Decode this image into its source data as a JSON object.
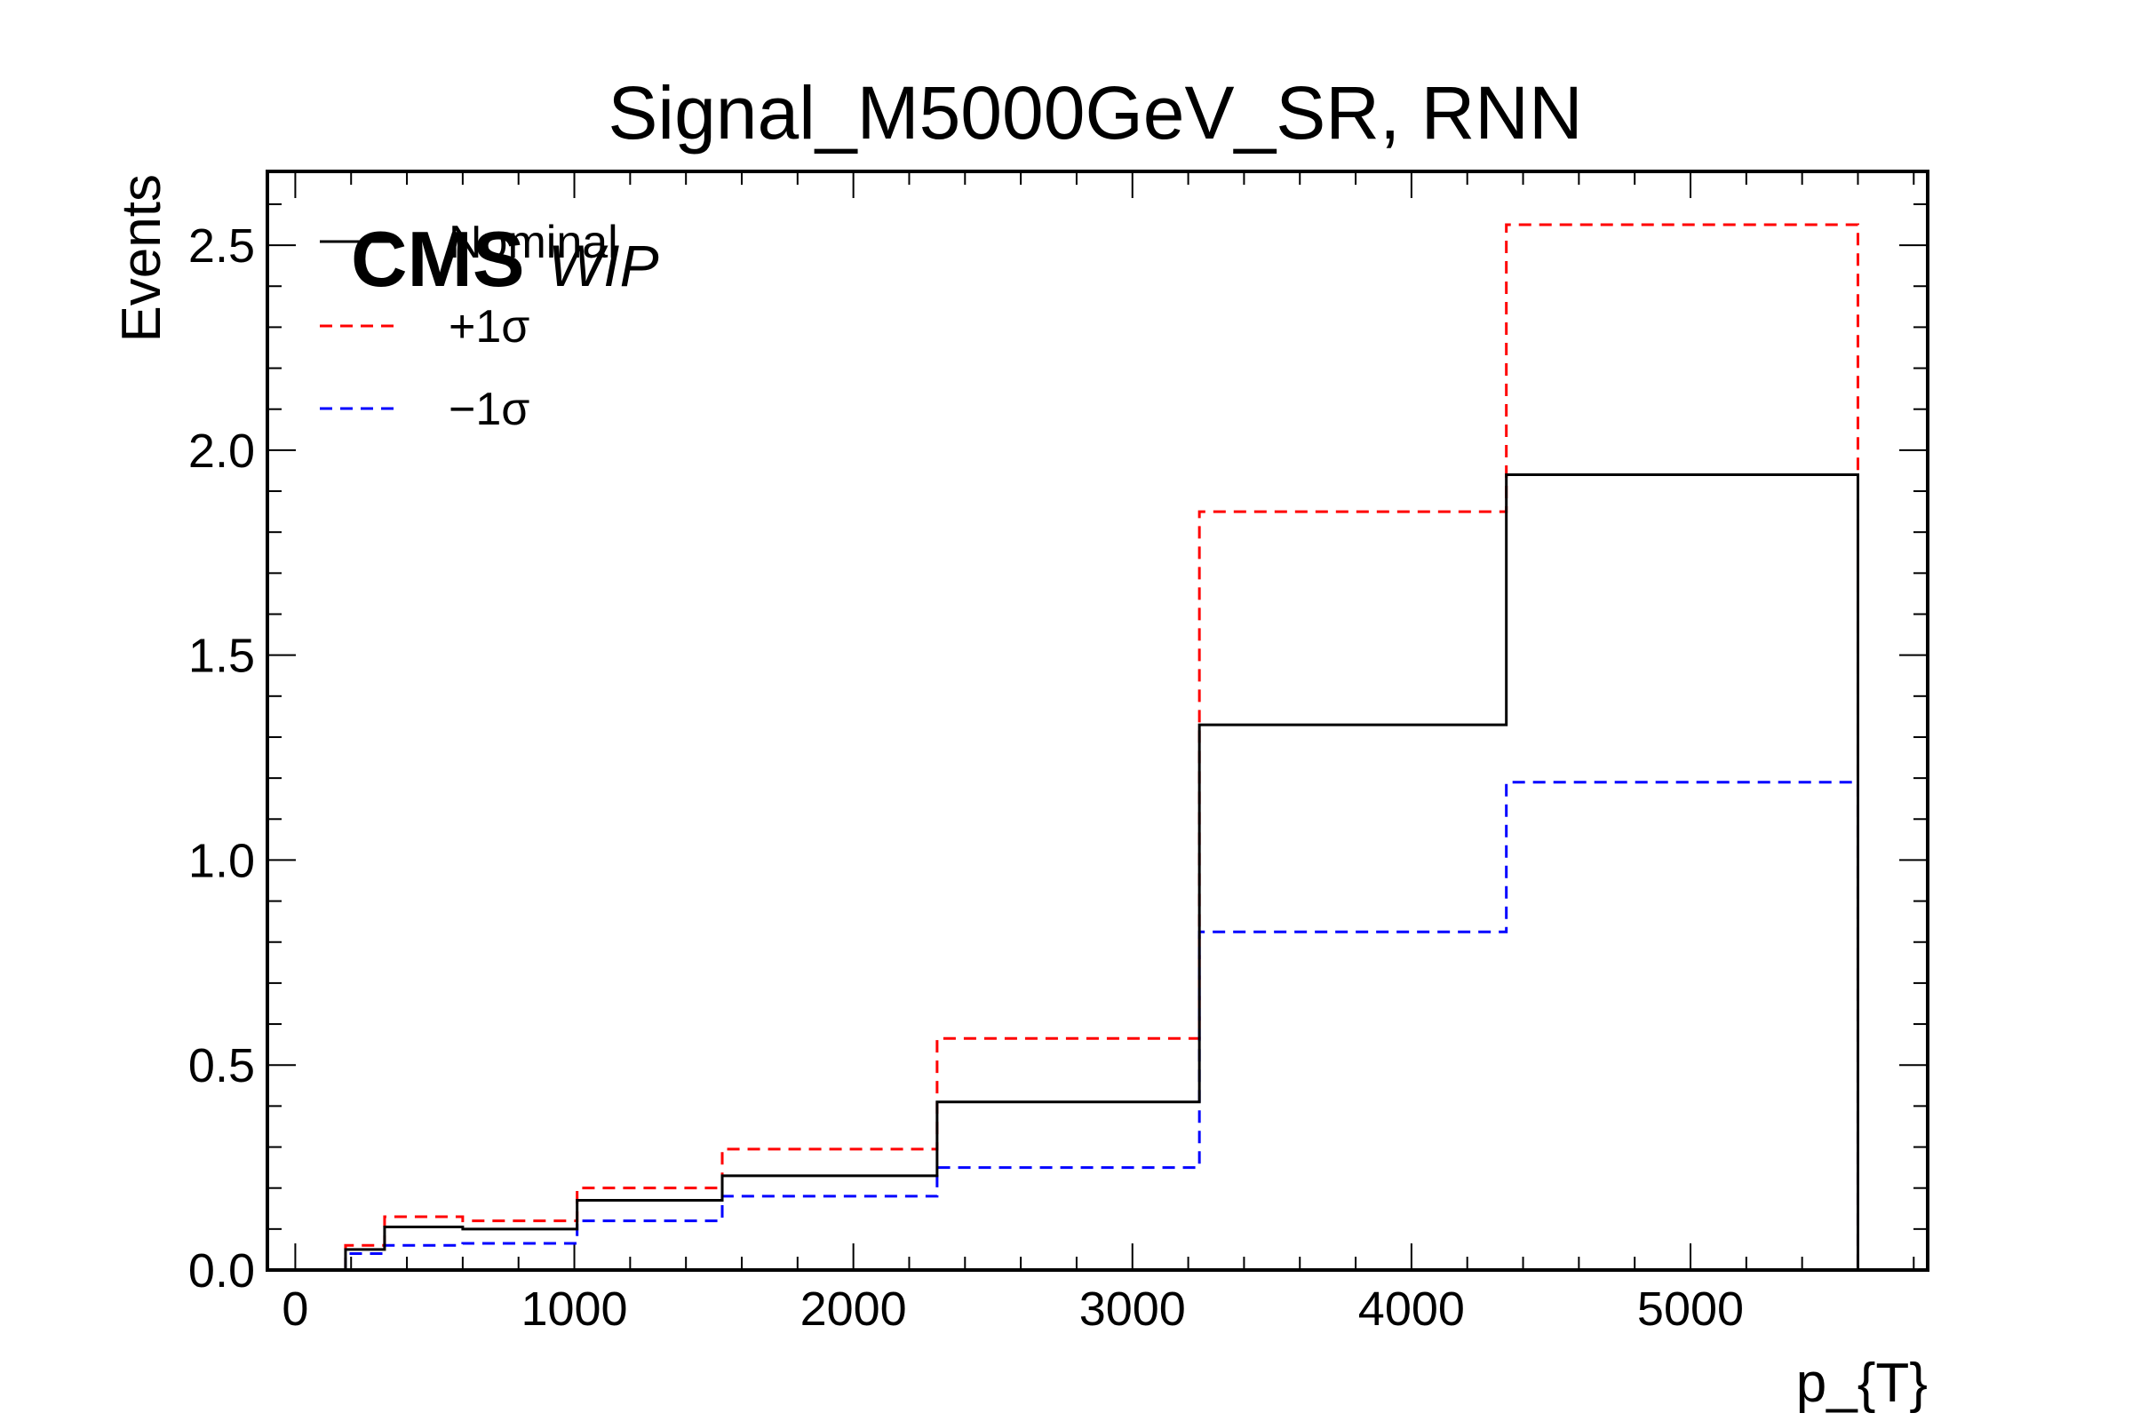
{
  "chart_data": {
    "type": "step",
    "title": "Signal_M5000GeV_SR, RNN",
    "xlabel": "p_{T}",
    "ylabel": "Events",
    "xlim": [
      -100,
      5850
    ],
    "ylim": [
      0,
      2.68
    ],
    "xticks": [
      0,
      1000,
      2000,
      3000,
      4000,
      5000
    ],
    "xtick_labels": [
      "0",
      "1000",
      "2000",
      "3000",
      "4000",
      "5000"
    ],
    "yticks": [
      0,
      0.5,
      1.0,
      1.5,
      2.0,
      2.5
    ],
    "ytick_labels": [
      "0.0",
      "0.5",
      "1.0",
      "1.5",
      "2.0",
      "2.5"
    ],
    "bin_edges": [
      180,
      320,
      600,
      1010,
      1530,
      2300,
      3240,
      4340,
      5600
    ],
    "series": [
      {
        "name": "Nominal",
        "color": "#000000",
        "style": "solid",
        "values": [
          0.05,
          0.105,
          0.1,
          0.17,
          0.23,
          0.41,
          1.33,
          1.94
        ]
      },
      {
        "name": "+1σ",
        "color": "#ff0000",
        "style": "dashed",
        "values": [
          0.06,
          0.13,
          0.12,
          0.2,
          0.295,
          0.565,
          1.85,
          2.55
        ]
      },
      {
        "name": "−1σ",
        "color": "#0000ff",
        "style": "dashed",
        "values": [
          0.04,
          0.06,
          0.065,
          0.12,
          0.18,
          0.25,
          0.825,
          1.19
        ]
      }
    ],
    "legend_position": "top-left",
    "grid": false
  },
  "label": {
    "experiment": "CMS",
    "status": "WIP"
  }
}
